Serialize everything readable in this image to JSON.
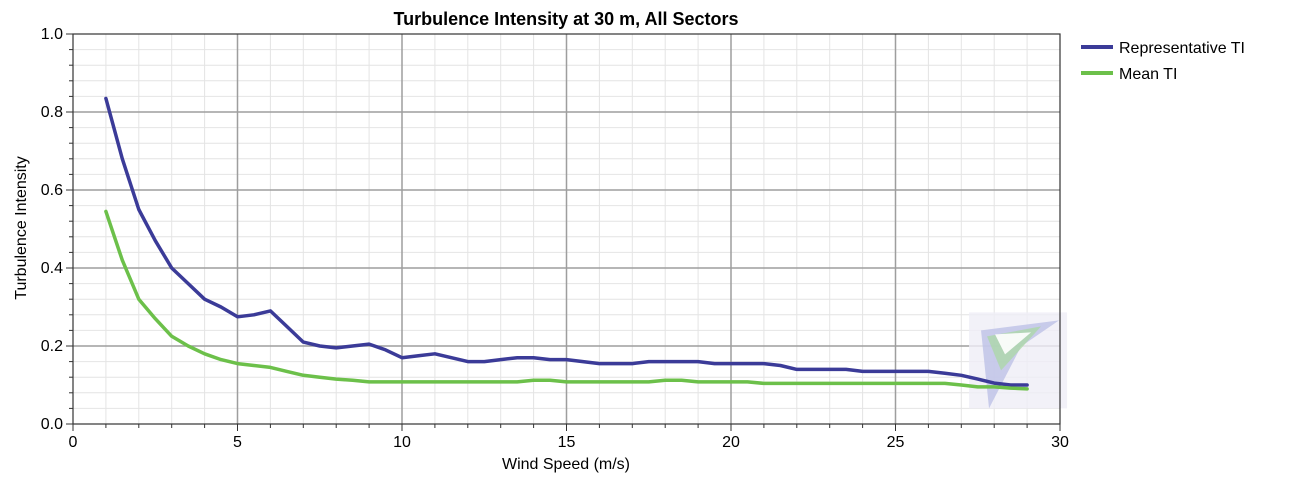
{
  "chart_data": {
    "type": "line",
    "title": "Turbulence Intensity at 30 m, All Sectors",
    "xlabel": "Wind Speed (m/s)",
    "ylabel": "Turbulence Intensity",
    "xlim": [
      0,
      30
    ],
    "ylim": [
      0,
      1
    ],
    "xticks": [
      "0",
      "5",
      "10",
      "15",
      "20",
      "25",
      "30"
    ],
    "xtick_values": [
      0,
      5,
      10,
      15,
      20,
      25,
      30
    ],
    "yticks": [
      "0.0",
      "0.2",
      "0.4",
      "0.6",
      "0.8",
      "1.0"
    ],
    "ytick_values": [
      0,
      0.2,
      0.4,
      0.6,
      0.8,
      1.0
    ],
    "grid": true,
    "legend_position": "top-right outside",
    "series": [
      {
        "name": "Representative TI",
        "color": "#3b3b98",
        "x": [
          1,
          1.5,
          2,
          2.5,
          3,
          3.5,
          4,
          4.5,
          5,
          5.5,
          6,
          6.5,
          7,
          7.5,
          8,
          8.5,
          9,
          9.5,
          10,
          10.5,
          11,
          11.5,
          12,
          12.5,
          13,
          13.5,
          14,
          14.5,
          15,
          15.5,
          16,
          16.5,
          17,
          17.5,
          18,
          18.5,
          19,
          19.5,
          20,
          20.5,
          21,
          21.5,
          22,
          22.5,
          23,
          23.5,
          24,
          24.5,
          25,
          25.5,
          26,
          26.5,
          27,
          27.5,
          28,
          28.5,
          29
        ],
        "values": [
          0.835,
          0.68,
          0.55,
          0.47,
          0.4,
          0.36,
          0.32,
          0.3,
          0.275,
          0.28,
          0.29,
          0.25,
          0.21,
          0.2,
          0.195,
          0.2,
          0.205,
          0.19,
          0.17,
          0.175,
          0.18,
          0.17,
          0.16,
          0.16,
          0.165,
          0.17,
          0.17,
          0.165,
          0.165,
          0.16,
          0.155,
          0.155,
          0.155,
          0.16,
          0.16,
          0.16,
          0.16,
          0.155,
          0.155,
          0.155,
          0.155,
          0.15,
          0.14,
          0.14,
          0.14,
          0.14,
          0.135,
          0.135,
          0.135,
          0.135,
          0.135,
          0.13,
          0.125,
          0.115,
          0.105,
          0.1,
          0.1
        ]
      },
      {
        "name": "Mean TI",
        "color": "#6cc04a",
        "x": [
          1,
          1.5,
          2,
          2.5,
          3,
          3.5,
          4,
          4.5,
          5,
          5.5,
          6,
          6.5,
          7,
          7.5,
          8,
          8.5,
          9,
          9.5,
          10,
          10.5,
          11,
          11.5,
          12,
          12.5,
          13,
          13.5,
          14,
          14.5,
          15,
          15.5,
          16,
          16.5,
          17,
          17.5,
          18,
          18.5,
          19,
          19.5,
          20,
          20.5,
          21,
          21.5,
          22,
          22.5,
          23,
          23.5,
          24,
          24.5,
          25,
          25.5,
          26,
          26.5,
          27,
          27.5,
          28,
          28.5,
          29
        ],
        "values": [
          0.545,
          0.42,
          0.32,
          0.27,
          0.225,
          0.2,
          0.18,
          0.165,
          0.155,
          0.15,
          0.145,
          0.135,
          0.125,
          0.12,
          0.115,
          0.112,
          0.108,
          0.108,
          0.108,
          0.108,
          0.108,
          0.108,
          0.108,
          0.108,
          0.108,
          0.108,
          0.112,
          0.112,
          0.108,
          0.108,
          0.108,
          0.108,
          0.108,
          0.108,
          0.112,
          0.112,
          0.108,
          0.108,
          0.108,
          0.108,
          0.104,
          0.104,
          0.104,
          0.104,
          0.104,
          0.104,
          0.104,
          0.104,
          0.104,
          0.104,
          0.104,
          0.104,
          0.1,
          0.095,
          0.095,
          0.092,
          0.09
        ]
      }
    ]
  }
}
